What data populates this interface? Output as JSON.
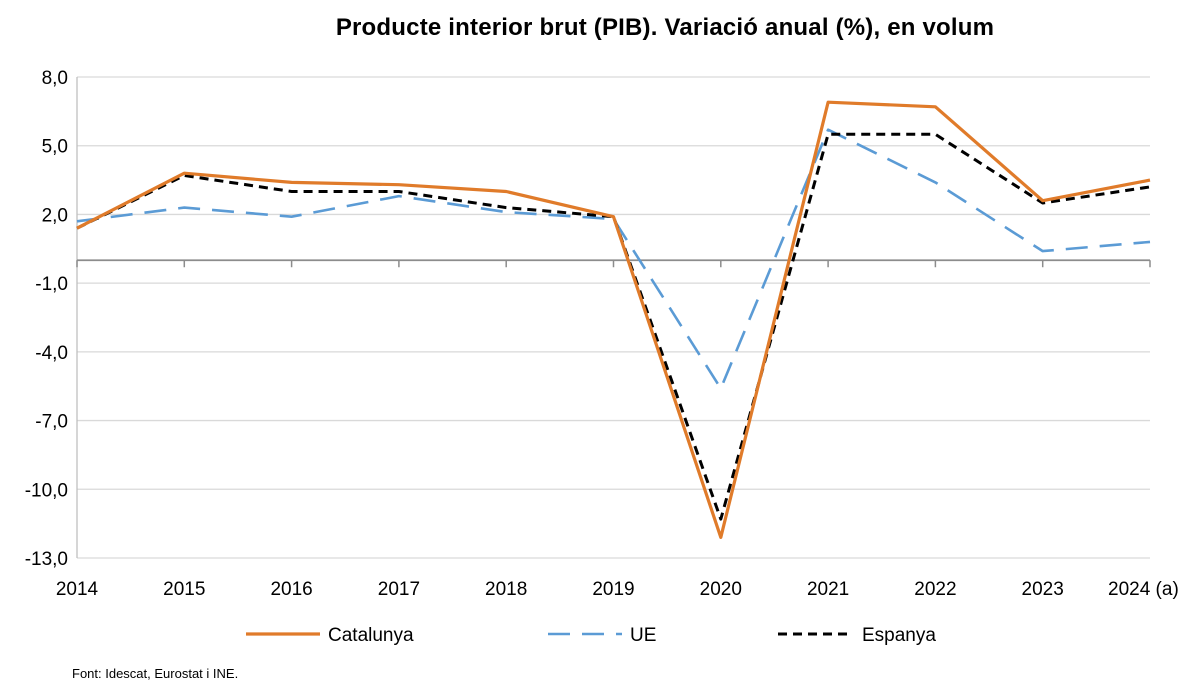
{
  "chart_data": {
    "type": "line",
    "title": "Producte interior brut (PIB). Variació anual (%), en volum",
    "categories": [
      "2014",
      "2015",
      "2016",
      "2017",
      "2018",
      "2019",
      "2020",
      "2021",
      "2022",
      "2023",
      "2024 (a)"
    ],
    "ylim": [
      -13.0,
      8.0
    ],
    "yticks": [
      "8,0",
      "5,0",
      "2,0",
      "-1,0",
      "-4,0",
      "-7,0",
      "-10,0",
      "-13,0"
    ],
    "ytick_values": [
      8,
      5,
      2,
      -1,
      -4,
      -7,
      -10,
      -13
    ],
    "grid": true,
    "legend_position": "bottom",
    "series": [
      {
        "name": "Catalunya",
        "color": "#e07b2a",
        "style": "solid",
        "values": [
          1.4,
          3.8,
          3.4,
          3.3,
          3.0,
          1.9,
          -12.1,
          6.9,
          6.7,
          2.6,
          3.5
        ]
      },
      {
        "name": "UE",
        "color": "#5b9bd5",
        "style": "dashed",
        "values": [
          1.7,
          2.3,
          1.9,
          2.8,
          2.1,
          1.8,
          -5.6,
          5.7,
          3.4,
          0.4,
          0.8
        ]
      },
      {
        "name": "Espanya",
        "color": "#000000",
        "style": "dotted",
        "values": [
          1.4,
          3.7,
          3.0,
          3.0,
          2.3,
          1.9,
          -11.3,
          5.5,
          5.5,
          2.5,
          3.2
        ]
      }
    ]
  },
  "source": "Font: Idescat,  Eurostat i INE."
}
